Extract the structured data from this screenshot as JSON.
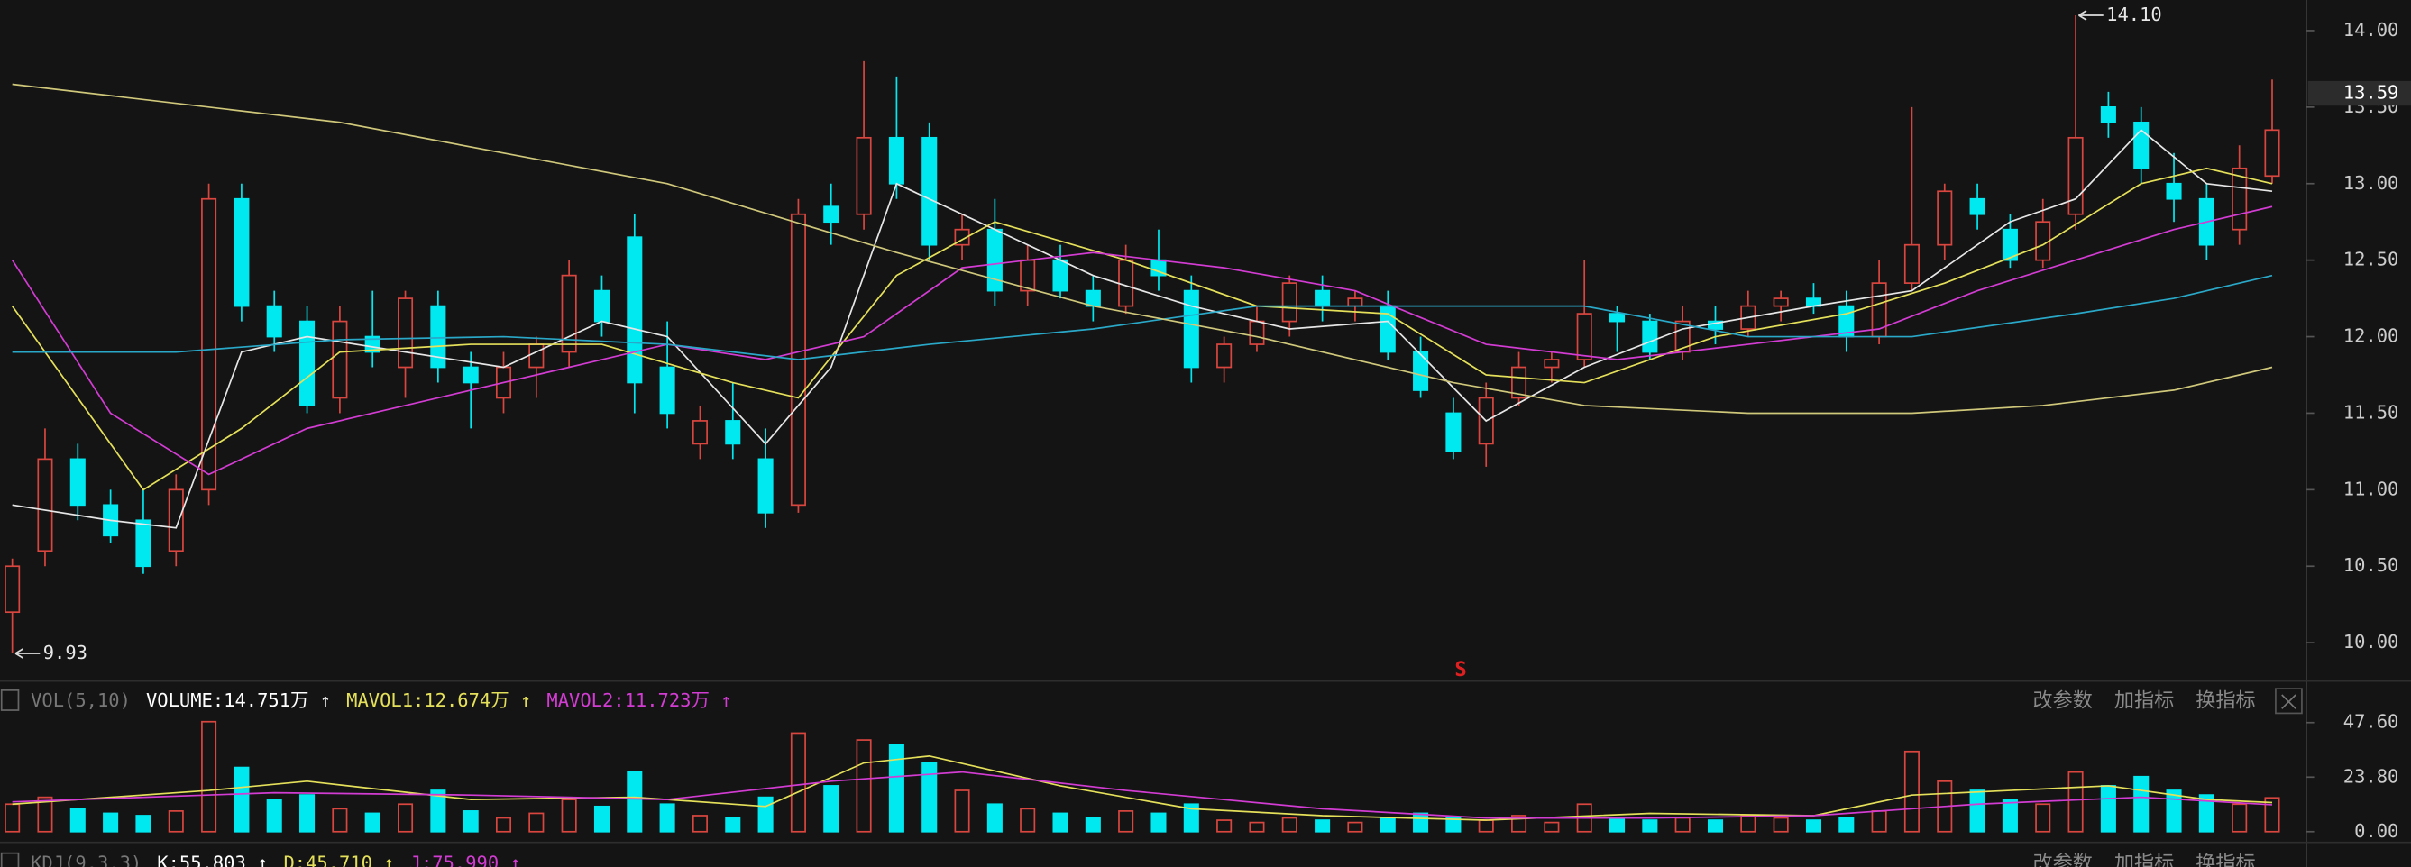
{
  "chart_data": [
    {
      "type": "candlestick",
      "ylim": [
        9.78,
        14.2
      ],
      "yticks": [
        {
          "value": 10,
          "label": "10.00"
        },
        {
          "value": 10.5,
          "label": "10.50"
        },
        {
          "value": 11,
          "label": "11.00"
        },
        {
          "value": 11.5,
          "label": "11.50"
        },
        {
          "value": 12,
          "label": "12.00"
        },
        {
          "value": 12.5,
          "label": "12.50"
        },
        {
          "value": 13,
          "label": "13.00"
        },
        {
          "value": 13.5,
          "label": "13.50"
        },
        {
          "value": 14,
          "label": "14.00"
        }
      ],
      "up_color": "#d9463f",
      "down_color": "#00e8f0",
      "candles": [
        [
          10.2,
          10.55,
          9.93,
          10.5
        ],
        [
          10.6,
          11.4,
          10.5,
          11.2
        ],
        [
          11.2,
          11.3,
          10.8,
          10.9
        ],
        [
          10.9,
          11.0,
          10.65,
          10.7
        ],
        [
          10.8,
          11.0,
          10.45,
          10.5
        ],
        [
          10.6,
          11.1,
          10.5,
          11.0
        ],
        [
          11.0,
          13.0,
          10.9,
          12.9
        ],
        [
          12.9,
          13.0,
          12.1,
          12.2
        ],
        [
          12.2,
          12.3,
          11.9,
          12.0
        ],
        [
          12.1,
          12.2,
          11.5,
          11.55
        ],
        [
          11.6,
          12.2,
          11.5,
          12.1
        ],
        [
          12.0,
          12.3,
          11.8,
          11.9
        ],
        [
          11.8,
          12.3,
          11.6,
          12.25
        ],
        [
          12.2,
          12.3,
          11.7,
          11.8
        ],
        [
          11.8,
          11.9,
          11.4,
          11.7
        ],
        [
          11.6,
          11.9,
          11.5,
          11.8
        ],
        [
          11.8,
          12.0,
          11.6,
          11.95
        ],
        [
          11.9,
          12.5,
          11.8,
          12.4
        ],
        [
          12.3,
          12.4,
          12.0,
          12.1
        ],
        [
          12.65,
          12.8,
          11.5,
          11.7
        ],
        [
          11.8,
          12.1,
          11.4,
          11.5
        ],
        [
          11.3,
          11.55,
          11.2,
          11.45
        ],
        [
          11.45,
          11.7,
          11.2,
          11.3
        ],
        [
          11.2,
          11.4,
          10.75,
          10.85
        ],
        [
          10.9,
          12.9,
          10.85,
          12.8
        ],
        [
          12.85,
          13.0,
          12.6,
          12.75
        ],
        [
          12.8,
          13.8,
          12.7,
          13.3
        ],
        [
          13.3,
          13.7,
          12.9,
          13.0
        ],
        [
          13.3,
          13.4,
          12.5,
          12.6
        ],
        [
          12.6,
          12.8,
          12.5,
          12.7
        ],
        [
          12.7,
          12.9,
          12.2,
          12.3
        ],
        [
          12.3,
          12.6,
          12.2,
          12.5
        ],
        [
          12.5,
          12.6,
          12.25,
          12.3
        ],
        [
          12.3,
          12.4,
          12.1,
          12.2
        ],
        [
          12.2,
          12.6,
          12.15,
          12.5
        ],
        [
          12.5,
          12.7,
          12.3,
          12.4
        ],
        [
          12.3,
          12.4,
          11.7,
          11.8
        ],
        [
          11.8,
          12.0,
          11.7,
          11.95
        ],
        [
          11.95,
          12.2,
          11.9,
          12.1
        ],
        [
          12.1,
          12.4,
          12.0,
          12.35
        ],
        [
          12.3,
          12.4,
          12.1,
          12.2
        ],
        [
          12.2,
          12.3,
          12.1,
          12.25
        ],
        [
          12.2,
          12.3,
          11.85,
          11.9
        ],
        [
          11.9,
          12.0,
          11.6,
          11.65
        ],
        [
          11.5,
          11.6,
          11.2,
          11.25
        ],
        [
          11.3,
          11.7,
          11.15,
          11.6
        ],
        [
          11.6,
          11.9,
          11.55,
          11.8
        ],
        [
          11.8,
          11.9,
          11.7,
          11.85
        ],
        [
          11.85,
          12.5,
          11.8,
          12.15
        ],
        [
          12.15,
          12.2,
          11.9,
          12.1
        ],
        [
          12.1,
          12.15,
          11.85,
          11.9
        ],
        [
          11.9,
          12.2,
          11.85,
          12.1
        ],
        [
          12.1,
          12.2,
          11.95,
          12.05
        ],
        [
          12.05,
          12.3,
          12.0,
          12.2
        ],
        [
          12.2,
          12.3,
          12.1,
          12.25
        ],
        [
          12.25,
          12.35,
          12.15,
          12.2
        ],
        [
          12.2,
          12.3,
          11.9,
          12.0
        ],
        [
          12.0,
          12.5,
          11.95,
          12.35
        ],
        [
          12.35,
          13.5,
          12.3,
          12.6
        ],
        [
          12.6,
          13.0,
          12.5,
          12.95
        ],
        [
          12.9,
          13.0,
          12.7,
          12.8
        ],
        [
          12.7,
          12.8,
          12.45,
          12.5
        ],
        [
          12.5,
          12.9,
          12.45,
          12.75
        ],
        [
          12.8,
          14.1,
          12.7,
          13.3
        ],
        [
          13.5,
          13.6,
          13.3,
          13.4
        ],
        [
          13.4,
          13.5,
          13.0,
          13.1
        ],
        [
          13.0,
          13.2,
          12.75,
          12.9
        ],
        [
          12.9,
          13.0,
          12.5,
          12.6
        ],
        [
          12.7,
          13.25,
          12.6,
          13.1
        ],
        [
          13.05,
          13.68,
          13.0,
          13.35
        ]
      ],
      "moving_averages": [
        {
          "color": "#e6e6e6",
          "x": [
            0,
            3,
            5,
            7,
            9,
            12,
            15,
            18,
            20,
            23,
            25,
            27,
            30,
            33,
            36,
            39,
            42,
            45,
            48,
            51,
            55,
            58,
            61,
            63,
            65,
            67,
            69
          ],
          "values": [
            10.9,
            10.8,
            10.75,
            11.9,
            12.0,
            11.9,
            11.8,
            12.1,
            12.0,
            11.3,
            11.8,
            13.0,
            12.7,
            12.4,
            12.2,
            12.05,
            12.1,
            11.45,
            11.8,
            12.05,
            12.2,
            12.3,
            12.75,
            12.9,
            13.35,
            13.0,
            12.95
          ]
        },
        {
          "color": "#e5e05a",
          "x": [
            0,
            4,
            7,
            10,
            14,
            18,
            22,
            24,
            27,
            30,
            34,
            38,
            42,
            45,
            48,
            52,
            56,
            59,
            62,
            65,
            67,
            69
          ],
          "values": [
            12.2,
            11.0,
            11.4,
            11.9,
            11.95,
            11.95,
            11.7,
            11.6,
            12.4,
            12.75,
            12.5,
            12.2,
            12.15,
            11.75,
            11.7,
            12.0,
            12.15,
            12.35,
            12.6,
            13.0,
            13.1,
            13.0
          ]
        },
        {
          "color": "#d23cd2",
          "x": [
            0,
            3,
            6,
            9,
            13,
            17,
            20,
            23,
            26,
            29,
            33,
            37,
            41,
            45,
            49,
            53,
            57,
            60,
            63,
            66,
            69
          ],
          "values": [
            12.5,
            11.5,
            11.1,
            11.4,
            11.6,
            11.8,
            11.95,
            11.85,
            12.0,
            12.45,
            12.55,
            12.45,
            12.3,
            11.95,
            11.85,
            11.95,
            12.05,
            12.3,
            12.5,
            12.7,
            12.85
          ]
        },
        {
          "color": "#2aa8c8",
          "x": [
            0,
            5,
            10,
            15,
            20,
            24,
            28,
            33,
            38,
            43,
            48,
            53,
            58,
            63,
            66,
            69
          ],
          "values": [
            11.9,
            11.9,
            11.98,
            12.0,
            11.95,
            11.85,
            11.95,
            12.05,
            12.2,
            12.2,
            12.2,
            12.0,
            12.0,
            12.15,
            12.25,
            12.4
          ]
        },
        {
          "color": "#cfc77a",
          "x": [
            0,
            10,
            20,
            27,
            33,
            38,
            44,
            48,
            53,
            58,
            62,
            66,
            69
          ],
          "values": [
            13.65,
            13.4,
            13.0,
            12.55,
            12.2,
            12.0,
            11.7,
            11.55,
            11.5,
            11.5,
            11.55,
            11.65,
            11.8
          ]
        }
      ],
      "high_marker": {
        "value": 14.1,
        "label": "14.10"
      },
      "low_marker": {
        "value": 9.93,
        "label": "9.93"
      },
      "last_price": {
        "value": 13.59,
        "label": "13.59"
      },
      "signal": "S"
    },
    {
      "type": "bar",
      "indicator": "VOL(5,10)",
      "readouts": [
        {
          "text": "VOLUME:14.751万 ↑",
          "color": "#ffffff"
        },
        {
          "text": "MAVOL1:12.674万 ↑",
          "color": "#e5e05a"
        },
        {
          "text": "MAVOL2:11.723万 ↑",
          "color": "#d23cd2"
        }
      ],
      "ylim": [
        0,
        53
      ],
      "yticks": [
        {
          "value": 0,
          "label": "0.00"
        },
        {
          "value": 23.8,
          "label": "23.80"
        },
        {
          "value": 47.6,
          "label": "47.60"
        }
      ],
      "values": [
        12,
        15,
        10,
        8,
        7,
        9,
        48,
        28,
        14,
        16,
        10,
        8,
        12,
        18,
        9,
        6,
        8,
        14,
        11,
        26,
        12,
        7,
        6,
        15,
        43,
        20,
        40,
        38,
        30,
        18,
        12,
        10,
        8,
        6,
        9,
        8,
        12,
        5,
        4,
        6,
        5,
        4,
        6,
        8,
        6,
        5,
        7,
        4,
        12,
        6,
        5,
        6,
        5,
        7,
        6,
        5,
        6,
        9,
        35,
        22,
        18,
        14,
        12,
        26,
        20,
        24,
        18,
        16,
        12,
        14.751
      ],
      "moving_averages": [
        {
          "color": "#e5e05a",
          "x": [
            0,
            6,
            9,
            14,
            19,
            23,
            26,
            28,
            32,
            36,
            40,
            45,
            50,
            55,
            58,
            61,
            64,
            67,
            69
          ],
          "values": [
            12,
            18,
            22,
            14,
            15,
            11,
            30,
            33,
            20,
            10,
            7,
            5,
            8,
            7,
            16,
            18,
            20,
            14,
            12.674
          ]
        },
        {
          "color": "#d23cd2",
          "x": [
            0,
            8,
            14,
            20,
            25,
            29,
            34,
            40,
            45,
            50,
            55,
            60,
            65,
            69
          ],
          "values": [
            13,
            17,
            16,
            14,
            22,
            26,
            18,
            10,
            6,
            6,
            7,
            12,
            15,
            11.723
          ]
        }
      ]
    }
  ],
  "toolbar": [
    "改参数",
    "加指标",
    "换指标"
  ],
  "next_panel": {
    "indicator": "KDJ(9,3,3)",
    "readouts": [
      {
        "text": "K:55.803 ↑",
        "color": "#ffffff"
      },
      {
        "text": "D:45.710 ↑",
        "color": "#e5e05a"
      },
      {
        "text": "J:75.990 ↑",
        "color": "#d23cd2"
      }
    ]
  }
}
